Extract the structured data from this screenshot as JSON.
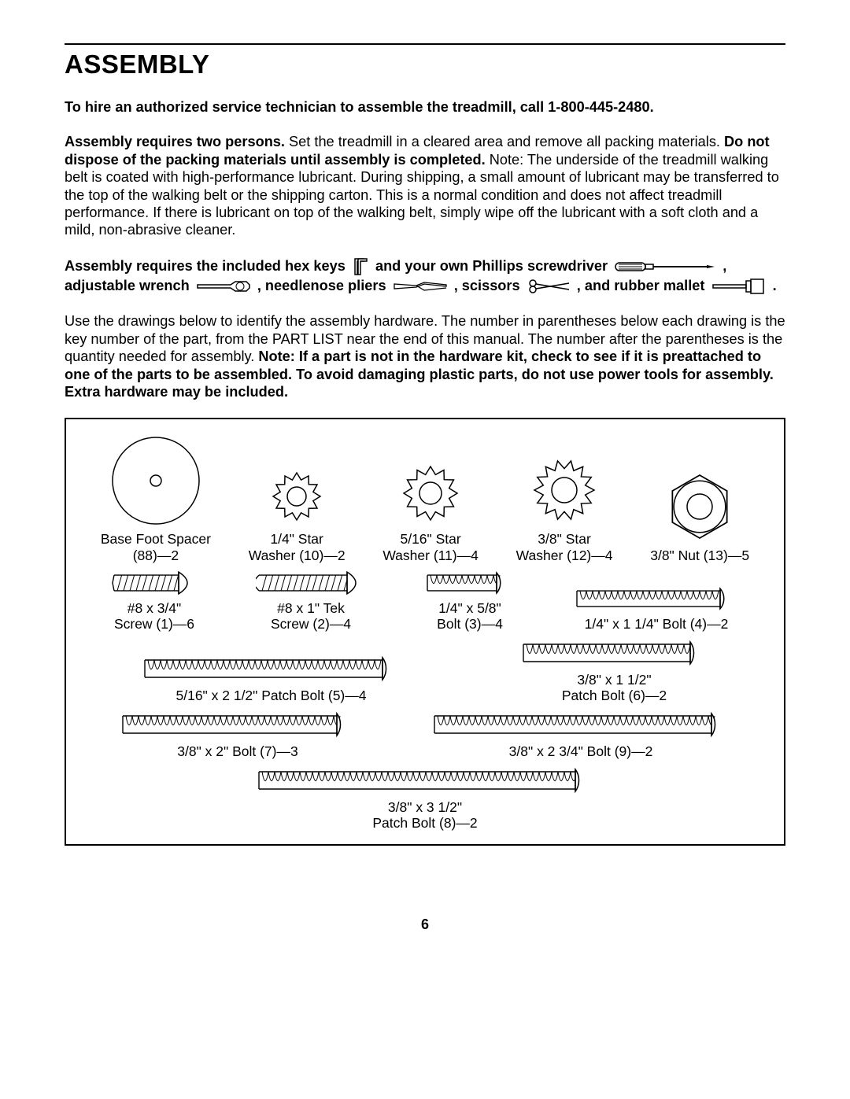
{
  "heading": "ASSEMBLY",
  "p_hire": "To hire an authorized service technician to assemble the treadmill, call 1-800-445-2480.",
  "p2": {
    "b1": "Assembly requires two persons.",
    "t1": " Set the treadmill in a cleared area and remove all packing materials. ",
    "b2": "Do not dispose of the packing materials until assembly is completed.",
    "t2": " Note: The underside of the treadmill walking belt is coated with high-performance lubricant. During shipping, a small amount of lubricant may be transferred to the top of the walking belt or the shipping carton. This is a normal condition and does not affect treadmill performance. If there is lubricant on top of the walking belt, simply wipe off the lubricant with a soft cloth and a mild, non-abrasive cleaner."
  },
  "tools": {
    "t1": "Assembly requires the included hex keys",
    "t2": "and your own Phillips screwdriver",
    "t3": ",",
    "t4": "adjustable wrench",
    "t5": ", needlenose pliers",
    "t6": ", scissors",
    "t7": ", and rubber mallet",
    "t8": "."
  },
  "p4": {
    "t1": "Use the drawings below to identify the assembly hardware. The number in parentheses below each drawing is the key number of the part, from the PART LIST near the end of this manual. The number after the parentheses is the quantity needed for assembly. ",
    "b1": "Note: If a part is not in the hardware kit, check to see if it is preattached to one of the parts to be assembled. To avoid damaging plastic parts, do not use power tools for assembly. Extra hardware may be included."
  },
  "hardware": {
    "base_foot_spacer_l1": "Base Foot Spacer",
    "base_foot_spacer_l2": "(88)—2",
    "star_washer_10_l1": "1/4\" Star",
    "star_washer_10_l2": "Washer (10)—2",
    "star_washer_11_l1": "5/16\" Star",
    "star_washer_11_l2": "Washer (11)—4",
    "star_washer_12_l1": "3/8\" Star",
    "star_washer_12_l2": "Washer (12)—4",
    "nut_13": "3/8\" Nut (13)—5",
    "screw_1_l1": "#8 x 3/4\"",
    "screw_1_l2": "Screw (1)—6",
    "screw_2_l1": "#8 x 1\" Tek",
    "screw_2_l2": "Screw (2)—4",
    "bolt_3_l1": "1/4\" x 5/8\"",
    "bolt_3_l2": "Bolt (3)—4",
    "bolt_4": "1/4\" x 1 1/4\" Bolt (4)—2",
    "bolt_5": "5/16\" x 2 1/2\" Patch Bolt (5)—4",
    "bolt_6_l1": "3/8\" x 1 1/2\"",
    "bolt_6_l2": "Patch Bolt (6)—2",
    "bolt_7": "3/8\" x 2\" Bolt (7)—3",
    "bolt_9": "3/8\" x 2 3/4\" Bolt (9)—2",
    "bolt_8_l1": "3/8\" x 3 1/2\"",
    "bolt_8_l2": "Patch Bolt (8)—2"
  },
  "page_number": "6",
  "hw_svg": {
    "flat_washer": {
      "outer_r": 55,
      "inner_r": 7
    },
    "star_washer_small": {
      "outer_r": 30,
      "inner_r": 12,
      "teeth": 12
    },
    "star_washer_med": {
      "outer_r": 34,
      "inner_r": 14,
      "teeth": 12
    },
    "star_washer_large": {
      "outer_r": 38,
      "inner_r": 16,
      "teeth": 14
    },
    "hex_nut": {
      "r": 40,
      "inner_r": 16
    },
    "screw_short": {
      "len": 90,
      "head": "truss",
      "thread": "v",
      "tip": "point"
    },
    "screw_tek": {
      "len": 120,
      "head": "truss",
      "thread": "v",
      "tip": "drill"
    },
    "bolt_3": {
      "len": 90,
      "head": "dome",
      "thread": "u"
    },
    "bolt_4": {
      "len": 180,
      "head": "dome",
      "thread": "u"
    },
    "bolt_5": {
      "len": 300,
      "head": "dome",
      "thread": "u"
    },
    "bolt_6": {
      "len": 210,
      "head": "dome",
      "thread": "u"
    },
    "bolt_7": {
      "len": 270,
      "head": "dome",
      "thread": "u"
    },
    "bolt_9": {
      "len": 350,
      "head": "dome",
      "thread": "u"
    },
    "bolt_8": {
      "len": 400,
      "head": "dome",
      "thread": "u"
    }
  }
}
